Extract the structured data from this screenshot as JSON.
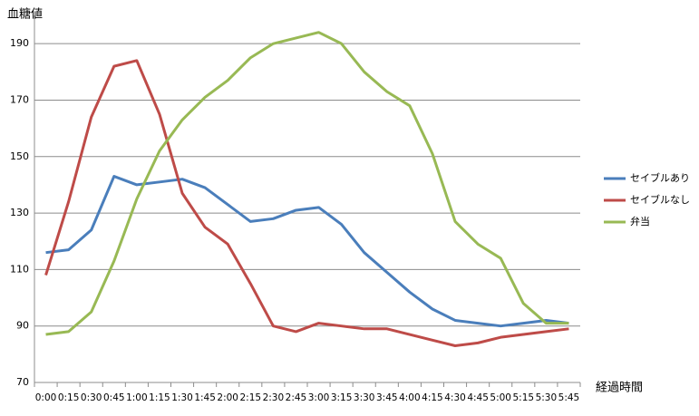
{
  "chart_data": {
    "type": "line",
    "y_label": "血糖値",
    "x_label": "経過時間",
    "categories": [
      "0:00",
      "0:15",
      "0:30",
      "0:45",
      "1:00",
      "1:15",
      "1:30",
      "1:45",
      "2:00",
      "2:15",
      "2:30",
      "2:45",
      "3:00",
      "3:15",
      "3:30",
      "3:45",
      "4:00",
      "4:15",
      "4:30",
      "4:45",
      "5:00",
      "5:15",
      "5:30",
      "5:45"
    ],
    "series": [
      {
        "name": "セイブルあり",
        "color": "#4a7ebb",
        "values": [
          116,
          117,
          124,
          143,
          140,
          141,
          142,
          139,
          133,
          127,
          128,
          131,
          132,
          126,
          116,
          109,
          102,
          96,
          92,
          91,
          90,
          91,
          92,
          91
        ]
      },
      {
        "name": "セイブルなし",
        "color": "#be4b48",
        "values": [
          108,
          134,
          164,
          182,
          184,
          165,
          137,
          125,
          119,
          105,
          90,
          88,
          91,
          90,
          89,
          89,
          87,
          85,
          83,
          84,
          86,
          87,
          88,
          89
        ]
      },
      {
        "name": "弁当",
        "color": "#98b954",
        "values": [
          87,
          88,
          95,
          113,
          135,
          152,
          163,
          171,
          177,
          185,
          190,
          192,
          194,
          190,
          180,
          173,
          168,
          151,
          127,
          119,
          114,
          98,
          91,
          91
        ]
      }
    ],
    "ylim": [
      70,
      200
    ],
    "yticks": [
      70,
      90,
      110,
      130,
      150,
      170,
      190
    ],
    "grid": true,
    "legend": "right"
  }
}
